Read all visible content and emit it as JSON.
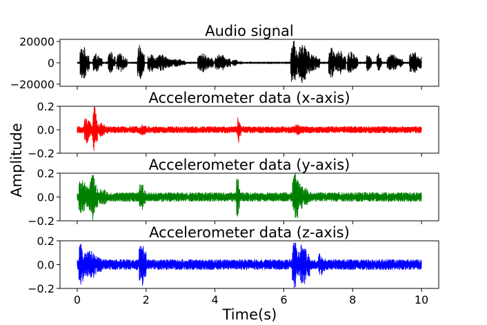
{
  "figure": {
    "xlabel": "Time(s)",
    "ylabel": "Amplitude"
  },
  "chart_data": [
    {
      "type": "line",
      "title": "Audio signal",
      "color": "#000000",
      "xlim": [
        -0.5,
        10.5
      ],
      "ylim": [
        -22000,
        22000
      ],
      "yticks": [
        -20000,
        0,
        20000
      ],
      "ytick_labels": [
        "−20000",
        "0",
        "20000"
      ],
      "xticks": [
        0,
        2,
        4,
        6,
        8,
        10
      ],
      "x_range": [
        0,
        10
      ],
      "noise": 300,
      "bursts": [
        {
          "t0": 0.08,
          "t1": 0.35,
          "amp": 16000
        },
        {
          "t0": 0.45,
          "t1": 0.72,
          "amp": 9000
        },
        {
          "t0": 0.9,
          "t1": 1.1,
          "amp": 11000
        },
        {
          "t0": 1.15,
          "t1": 1.45,
          "amp": 9000
        },
        {
          "t0": 1.75,
          "t1": 1.95,
          "amp": 17000
        },
        {
          "t0": 2.05,
          "t1": 2.3,
          "amp": 9500
        },
        {
          "t0": 2.3,
          "t1": 2.75,
          "amp": 8000
        },
        {
          "t0": 2.75,
          "t1": 3.15,
          "amp": 4000
        },
        {
          "t0": 3.5,
          "t1": 3.95,
          "amp": 9000
        },
        {
          "t0": 4.0,
          "t1": 4.45,
          "amp": 8000
        },
        {
          "t0": 4.5,
          "t1": 4.75,
          "amp": 3000
        },
        {
          "t0": 6.2,
          "t1": 6.45,
          "amp": 21000
        },
        {
          "t0": 6.45,
          "t1": 6.75,
          "amp": 20000
        },
        {
          "t0": 6.75,
          "t1": 7.05,
          "amp": 9000
        },
        {
          "t0": 7.3,
          "t1": 7.55,
          "amp": 15000
        },
        {
          "t0": 7.55,
          "t1": 7.8,
          "amp": 13000
        },
        {
          "t0": 7.85,
          "t1": 8.15,
          "amp": 11000
        },
        {
          "t0": 8.4,
          "t1": 8.55,
          "amp": 9000
        },
        {
          "t0": 8.7,
          "t1": 8.85,
          "amp": 9000
        },
        {
          "t0": 9.0,
          "t1": 9.45,
          "amp": 8000
        },
        {
          "t0": 9.65,
          "t1": 10.0,
          "amp": 11000
        }
      ]
    },
    {
      "type": "line",
      "title": "Accelerometer data (x-axis)",
      "color": "#ff0000",
      "xlim": [
        -0.5,
        10.5
      ],
      "ylim": [
        -0.2,
        0.2
      ],
      "yticks": [
        -0.2,
        0.0,
        0.2
      ],
      "ytick_labels": [
        "−0.2",
        "0.0",
        "0.2"
      ],
      "xticks": [
        0,
        2,
        4,
        6,
        8,
        10
      ],
      "x_range": [
        0,
        10
      ],
      "noise": 0.03,
      "bursts": [
        {
          "t0": 0.2,
          "t1": 0.45,
          "amp": 0.12
        },
        {
          "t0": 0.45,
          "t1": 0.6,
          "amp": 0.2
        },
        {
          "t0": 0.6,
          "t1": 0.9,
          "amp": 0.06
        },
        {
          "t0": 1.8,
          "t1": 2.1,
          "amp": 0.05
        },
        {
          "t0": 4.65,
          "t1": 4.75,
          "amp": 0.12
        },
        {
          "t0": 6.3,
          "t1": 6.6,
          "amp": 0.05
        }
      ]
    },
    {
      "type": "line",
      "title": "Accelerometer data (y-axis)",
      "color": "#008000",
      "xlim": [
        -0.5,
        10.5
      ],
      "ylim": [
        -0.2,
        0.2
      ],
      "yticks": [
        -0.2,
        0.0,
        0.2
      ],
      "ytick_labels": [
        "−0.2",
        "0.0",
        "0.2"
      ],
      "xticks": [
        0,
        2,
        4,
        6,
        8,
        10
      ],
      "x_range": [
        0,
        10
      ],
      "noise": 0.04,
      "bursts": [
        {
          "t0": 0.05,
          "t1": 0.35,
          "amp": 0.16
        },
        {
          "t0": 0.35,
          "t1": 0.6,
          "amp": 0.2
        },
        {
          "t0": 0.6,
          "t1": 1.0,
          "amp": 0.07
        },
        {
          "t0": 1.8,
          "t1": 2.0,
          "amp": 0.12
        },
        {
          "t0": 4.62,
          "t1": 4.72,
          "amp": 0.2
        },
        {
          "t0": 6.25,
          "t1": 6.55,
          "amp": 0.2
        },
        {
          "t0": 6.55,
          "t1": 6.8,
          "amp": 0.08
        }
      ]
    },
    {
      "type": "line",
      "title": "Accelerometer data (z-axis)",
      "color": "#0000ff",
      "xlim": [
        -0.5,
        10.5
      ],
      "ylim": [
        -0.2,
        0.2
      ],
      "yticks": [
        -0.2,
        0.0,
        0.2
      ],
      "ytick_labels": [
        "−0.2",
        "0.0",
        "0.2"
      ],
      "xticks": [
        0,
        2,
        4,
        6,
        8,
        10
      ],
      "xtick_labels": [
        "0",
        "2",
        "4",
        "6",
        "8",
        "10"
      ],
      "x_range": [
        0,
        10
      ],
      "noise": 0.045,
      "bursts": [
        {
          "t0": 0.05,
          "t1": 0.25,
          "amp": 0.18
        },
        {
          "t0": 0.25,
          "t1": 0.7,
          "amp": 0.12
        },
        {
          "t0": 1.8,
          "t1": 2.0,
          "amp": 0.2
        },
        {
          "t0": 6.25,
          "t1": 6.45,
          "amp": 0.2
        },
        {
          "t0": 6.45,
          "t1": 6.75,
          "amp": 0.18
        },
        {
          "t0": 7.0,
          "t1": 7.2,
          "amp": 0.1
        }
      ]
    }
  ]
}
